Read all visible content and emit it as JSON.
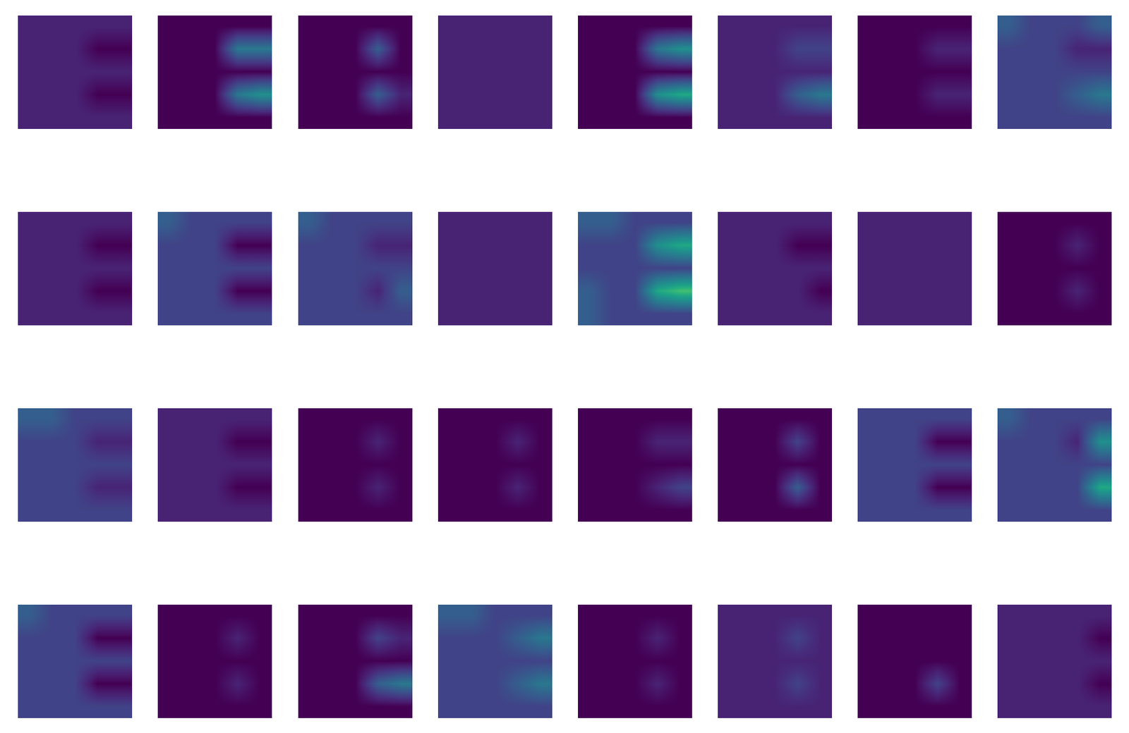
{
  "chart_data": {
    "type": "heatmap_grid",
    "tick_labels": false,
    "color": "viridis",
    "clim": [
      0,
      10
    ],
    "panels": [
      [
        [
          1,
          1,
          1,
          1,
          1
        ],
        [
          1,
          1,
          1,
          0,
          0
        ],
        [
          1,
          1,
          1,
          1,
          1
        ],
        [
          1,
          1,
          1,
          0,
          0
        ],
        [
          1,
          1,
          1,
          1,
          1
        ]
      ],
      [
        [
          0,
          0,
          0,
          0,
          0
        ],
        [
          0,
          0,
          0,
          4,
          4
        ],
        [
          0,
          0,
          0,
          0,
          0
        ],
        [
          0,
          0,
          0,
          4,
          5
        ],
        [
          0,
          0,
          0,
          0,
          0
        ]
      ],
      [
        [
          0,
          0,
          0,
          0,
          0
        ],
        [
          0,
          0,
          0,
          3,
          0
        ],
        [
          0,
          0,
          0,
          0,
          0
        ],
        [
          0,
          0,
          0,
          3,
          1
        ],
        [
          0,
          0,
          0,
          0,
          0
        ]
      ],
      [
        [
          1,
          1,
          1,
          1,
          1
        ],
        [
          1,
          1,
          1,
          1,
          1
        ],
        [
          1,
          1,
          1,
          1,
          1
        ],
        [
          1,
          1,
          1,
          1,
          1
        ],
        [
          1,
          1,
          1,
          1,
          1
        ]
      ],
      [
        [
          0,
          0,
          0,
          0,
          0
        ],
        [
          0,
          0,
          0,
          4,
          5
        ],
        [
          0,
          0,
          0,
          0,
          0
        ],
        [
          0,
          0,
          0,
          5,
          6
        ],
        [
          0,
          0,
          0,
          0,
          0
        ]
      ],
      [
        [
          1,
          1,
          1,
          1,
          1
        ],
        [
          1,
          1,
          1,
          2,
          2
        ],
        [
          1,
          1,
          1,
          1,
          1
        ],
        [
          1,
          1,
          1,
          3,
          4
        ],
        [
          1,
          1,
          1,
          1,
          1
        ]
      ],
      [
        [
          0,
          0,
          0,
          0,
          0
        ],
        [
          0,
          0,
          0,
          1,
          1
        ],
        [
          0,
          0,
          0,
          0,
          0
        ],
        [
          0,
          0,
          0,
          1,
          1
        ],
        [
          0,
          0,
          0,
          0,
          0
        ]
      ],
      [
        [
          3,
          2,
          2,
          2,
          3
        ],
        [
          2,
          2,
          2,
          1,
          1
        ],
        [
          2,
          2,
          2,
          2,
          2
        ],
        [
          2,
          2,
          2,
          3,
          4
        ],
        [
          2,
          2,
          2,
          2,
          2
        ]
      ],
      [
        [
          1,
          1,
          1,
          1,
          1
        ],
        [
          1,
          1,
          1,
          0,
          0
        ],
        [
          1,
          1,
          1,
          1,
          1
        ],
        [
          1,
          1,
          1,
          0,
          0
        ],
        [
          1,
          1,
          1,
          1,
          1
        ]
      ],
      [
        [
          3,
          2,
          2,
          2,
          2
        ],
        [
          2,
          2,
          2,
          0,
          0
        ],
        [
          2,
          2,
          2,
          2,
          2
        ],
        [
          2,
          2,
          2,
          0,
          0
        ],
        [
          2,
          2,
          2,
          2,
          2
        ]
      ],
      [
        [
          3,
          2,
          2,
          2,
          2
        ],
        [
          2,
          2,
          2,
          1,
          1
        ],
        [
          2,
          2,
          2,
          2,
          2
        ],
        [
          2,
          2,
          2,
          1,
          3
        ],
        [
          2,
          2,
          2,
          2,
          2
        ]
      ],
      [
        [
          1,
          1,
          1,
          1,
          1
        ],
        [
          1,
          1,
          1,
          1,
          1
        ],
        [
          1,
          1,
          1,
          1,
          1
        ],
        [
          1,
          1,
          1,
          1,
          1
        ],
        [
          1,
          1,
          1,
          1,
          1
        ]
      ],
      [
        [
          3,
          3,
          2,
          2,
          2
        ],
        [
          2,
          2,
          2,
          5,
          6
        ],
        [
          2,
          2,
          2,
          2,
          2
        ],
        [
          3,
          2,
          2,
          6,
          7
        ],
        [
          3,
          2,
          2,
          2,
          2
        ]
      ],
      [
        [
          1,
          1,
          1,
          1,
          1
        ],
        [
          1,
          1,
          1,
          0,
          0
        ],
        [
          1,
          1,
          1,
          1,
          1
        ],
        [
          1,
          1,
          1,
          1,
          0
        ],
        [
          1,
          1,
          1,
          1,
          1
        ]
      ],
      [
        [
          1,
          1,
          1,
          1,
          1
        ],
        [
          1,
          1,
          1,
          1,
          1
        ],
        [
          1,
          1,
          1,
          1,
          1
        ],
        [
          1,
          1,
          1,
          1,
          1
        ],
        [
          1,
          1,
          1,
          1,
          1
        ]
      ],
      [
        [
          0,
          0,
          0,
          0,
          0
        ],
        [
          0,
          0,
          0,
          1,
          0
        ],
        [
          0,
          0,
          0,
          0,
          0
        ],
        [
          0,
          0,
          0,
          1,
          0
        ],
        [
          0,
          0,
          0,
          0,
          0
        ]
      ],
      [
        [
          3,
          3,
          2,
          2,
          2
        ],
        [
          2,
          2,
          2,
          1,
          1
        ],
        [
          2,
          2,
          2,
          2,
          2
        ],
        [
          2,
          2,
          2,
          1,
          1
        ],
        [
          2,
          2,
          2,
          2,
          2
        ]
      ],
      [
        [
          1,
          1,
          1,
          1,
          1
        ],
        [
          1,
          1,
          1,
          0,
          0
        ],
        [
          1,
          1,
          1,
          1,
          1
        ],
        [
          1,
          1,
          1,
          0,
          0
        ],
        [
          1,
          1,
          1,
          1,
          1
        ]
      ],
      [
        [
          0,
          0,
          0,
          0,
          0
        ],
        [
          0,
          0,
          0,
          1,
          0
        ],
        [
          0,
          0,
          0,
          0,
          0
        ],
        [
          0,
          0,
          0,
          1,
          0
        ],
        [
          0,
          0,
          0,
          0,
          0
        ]
      ],
      [
        [
          0,
          0,
          0,
          0,
          0
        ],
        [
          0,
          0,
          0,
          1,
          0
        ],
        [
          0,
          0,
          0,
          0,
          0
        ],
        [
          0,
          0,
          0,
          1,
          0
        ],
        [
          0,
          0,
          0,
          0,
          0
        ]
      ],
      [
        [
          0,
          0,
          0,
          0,
          0
        ],
        [
          0,
          0,
          0,
          1,
          1
        ],
        [
          0,
          0,
          0,
          0,
          0
        ],
        [
          0,
          0,
          0,
          1,
          2
        ],
        [
          0,
          0,
          0,
          0,
          0
        ]
      ],
      [
        [
          0,
          0,
          0,
          0,
          0
        ],
        [
          0,
          0,
          0,
          2,
          0
        ],
        [
          0,
          0,
          0,
          0,
          0
        ],
        [
          0,
          0,
          0,
          3,
          0
        ],
        [
          0,
          0,
          0,
          0,
          0
        ]
      ],
      [
        [
          2,
          2,
          2,
          2,
          2
        ],
        [
          2,
          2,
          2,
          0,
          0
        ],
        [
          2,
          2,
          2,
          2,
          2
        ],
        [
          2,
          2,
          2,
          0,
          0
        ],
        [
          2,
          2,
          2,
          2,
          2
        ]
      ],
      [
        [
          3,
          2,
          2,
          2,
          2
        ],
        [
          2,
          2,
          2,
          1,
          5
        ],
        [
          2,
          2,
          2,
          2,
          2
        ],
        [
          2,
          2,
          2,
          2,
          6
        ],
        [
          2,
          2,
          2,
          2,
          2
        ]
      ],
      [
        [
          3,
          2,
          2,
          2,
          2
        ],
        [
          2,
          2,
          2,
          0,
          0
        ],
        [
          2,
          2,
          2,
          2,
          2
        ],
        [
          2,
          2,
          2,
          0,
          0
        ],
        [
          2,
          2,
          2,
          2,
          2
        ]
      ],
      [
        [
          0,
          0,
          0,
          0,
          0
        ],
        [
          0,
          0,
          0,
          1,
          0
        ],
        [
          0,
          0,
          0,
          0,
          0
        ],
        [
          0,
          0,
          0,
          1,
          0
        ],
        [
          0,
          0,
          0,
          0,
          0
        ]
      ],
      [
        [
          0,
          0,
          0,
          0,
          0
        ],
        [
          0,
          0,
          0,
          2,
          1
        ],
        [
          0,
          0,
          0,
          0,
          0
        ],
        [
          0,
          0,
          0,
          3,
          4
        ],
        [
          0,
          0,
          0,
          0,
          0
        ]
      ],
      [
        [
          3,
          3,
          2,
          2,
          2
        ],
        [
          2,
          2,
          2,
          3,
          4
        ],
        [
          2,
          2,
          2,
          2,
          2
        ],
        [
          2,
          2,
          2,
          3,
          4
        ],
        [
          2,
          2,
          2,
          2,
          2
        ]
      ],
      [
        [
          0,
          0,
          0,
          0,
          0
        ],
        [
          0,
          0,
          0,
          1,
          0
        ],
        [
          0,
          0,
          0,
          0,
          0
        ],
        [
          0,
          0,
          0,
          1,
          0
        ],
        [
          0,
          0,
          0,
          0,
          0
        ]
      ],
      [
        [
          1,
          1,
          1,
          1,
          1
        ],
        [
          1,
          1,
          1,
          2,
          1
        ],
        [
          1,
          1,
          1,
          1,
          1
        ],
        [
          1,
          1,
          1,
          2,
          1
        ],
        [
          1,
          1,
          1,
          1,
          1
        ]
      ],
      [
        [
          0,
          0,
          0,
          0,
          0
        ],
        [
          0,
          0,
          0,
          0,
          0
        ],
        [
          0,
          0,
          0,
          0,
          0
        ],
        [
          0,
          0,
          0,
          2,
          0
        ],
        [
          0,
          0,
          0,
          0,
          0
        ]
      ],
      [
        [
          1,
          1,
          1,
          1,
          1
        ],
        [
          1,
          1,
          1,
          1,
          0
        ],
        [
          1,
          1,
          1,
          1,
          1
        ],
        [
          1,
          1,
          1,
          1,
          0
        ],
        [
          1,
          1,
          1,
          1,
          1
        ]
      ]
    ]
  }
}
